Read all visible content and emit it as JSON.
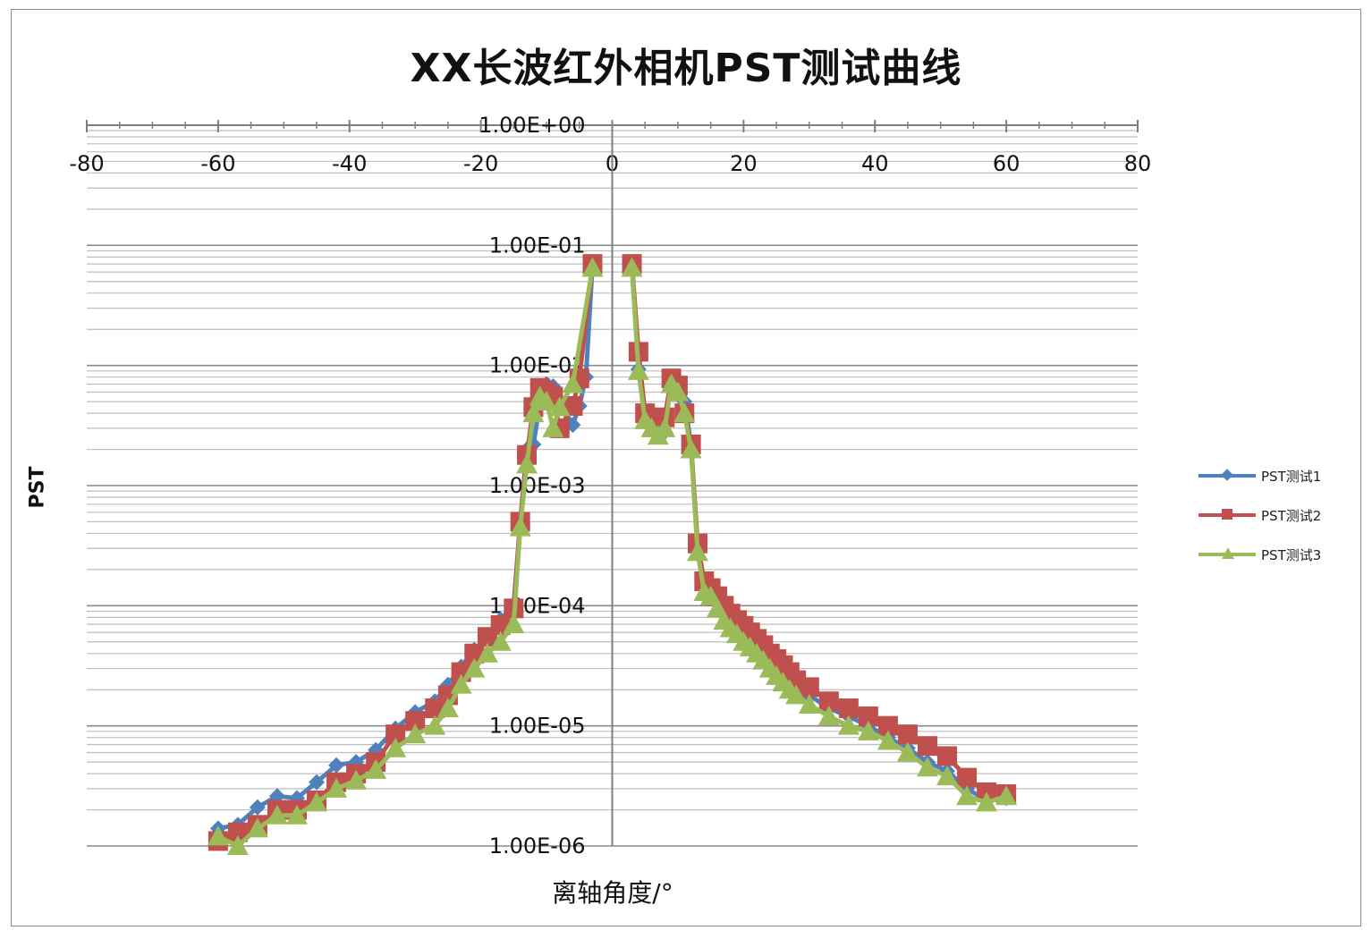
{
  "chart_data": {
    "type": "scatter",
    "title": "XX长波红外相机PST测试曲线",
    "xlabel": "离轴角度/°",
    "ylabel": "PST",
    "xlim": [
      -80,
      80
    ],
    "ylim": [
      1e-06,
      1
    ],
    "yscale": "log",
    "x_ticks": [
      "-80",
      "-60",
      "-40",
      "-20",
      "0",
      "20",
      "40",
      "60",
      "80"
    ],
    "y_ticks": [
      "1.00E+00",
      "1.00E-01",
      "1.00E-02",
      "1.00E-03",
      "1.00E-04",
      "1.00E-05",
      "1.00E-06"
    ],
    "grid": true,
    "legend_position": "right",
    "series": [
      {
        "name": "PST测试1",
        "color": "#4F81BD",
        "marker": "diamond",
        "points": [
          [
            -60,
            1.4e-06
          ],
          [
            -57,
            1.5e-06
          ],
          [
            -54,
            2.1e-06
          ],
          [
            -51,
            2.6e-06
          ],
          [
            -48,
            2.5e-06
          ],
          [
            -45,
            3.4e-06
          ],
          [
            -42,
            4.7e-06
          ],
          [
            -39,
            5e-06
          ],
          [
            -36,
            6.3e-06
          ],
          [
            -33,
            9.5e-06
          ],
          [
            -30,
            1.3e-05
          ],
          [
            -27,
            1.6e-05
          ],
          [
            -25,
            2.2e-05
          ],
          [
            -23,
            3.1e-05
          ],
          [
            -21,
            4.3e-05
          ],
          [
            -19,
            5.4e-05
          ],
          [
            -17,
            7.7e-05
          ],
          [
            -15,
            0.0001
          ],
          [
            -14,
            0.0005
          ],
          [
            -13,
            0.002
          ],
          [
            -12,
            0.0022
          ],
          [
            -11,
            0.0048
          ],
          [
            -10,
            0.007
          ],
          [
            -9,
            0.0067
          ],
          [
            -8,
            0.005
          ],
          [
            -6,
            0.0032
          ],
          [
            -5,
            0.0046
          ],
          [
            -4,
            0.008
          ],
          [
            -3,
            0.07
          ],
          [
            3,
            0.07
          ],
          [
            4,
            0.0093
          ],
          [
            5,
            0.0035
          ],
          [
            6,
            0.0032
          ],
          [
            7,
            0.0028
          ],
          [
            8,
            0.0028
          ],
          [
            9,
            0.0078
          ],
          [
            10,
            0.0076
          ],
          [
            11,
            0.005
          ],
          [
            12,
            0.0022
          ],
          [
            13,
            0.0003
          ],
          [
            14,
            0.00015
          ],
          [
            15,
            0.00014
          ],
          [
            16,
            0.00011
          ],
          [
            17,
            8.8e-05
          ],
          [
            18,
            7.8e-05
          ],
          [
            19,
            6.6e-05
          ],
          [
            20,
            5.8e-05
          ],
          [
            21,
            5.3e-05
          ],
          [
            22,
            4.8e-05
          ],
          [
            23,
            4.1e-05
          ],
          [
            24,
            3.5e-05
          ],
          [
            25,
            3e-05
          ],
          [
            26,
            2.7e-05
          ],
          [
            27,
            2.4e-05
          ],
          [
            28,
            2.1e-05
          ],
          [
            30,
            1.8e-05
          ],
          [
            33,
            1.4e-05
          ],
          [
            36,
            1.2e-05
          ],
          [
            39,
            1e-05
          ],
          [
            42,
            8e-06
          ],
          [
            45,
            6.5e-06
          ],
          [
            48,
            5e-06
          ],
          [
            51,
            4.2e-06
          ],
          [
            54,
            3e-06
          ],
          [
            57,
            2.4e-06
          ],
          [
            60,
            2.5e-06
          ]
        ]
      },
      {
        "name": "PST测试2",
        "color": "#C0504D",
        "marker": "square",
        "points": [
          [
            -60,
            1.1e-06
          ],
          [
            -57,
            1.3e-06
          ],
          [
            -54,
            1.5e-06
          ],
          [
            -51,
            2e-06
          ],
          [
            -48,
            2e-06
          ],
          [
            -45,
            2.4e-06
          ],
          [
            -42,
            3.4e-06
          ],
          [
            -39,
            4e-06
          ],
          [
            -36,
            5e-06
          ],
          [
            -33,
            8.5e-06
          ],
          [
            -30,
            1.1e-05
          ],
          [
            -27,
            1.4e-05
          ],
          [
            -25,
            1.8e-05
          ],
          [
            -23,
            2.8e-05
          ],
          [
            -21,
            4e-05
          ],
          [
            -19,
            5.5e-05
          ],
          [
            -17,
            6.9e-05
          ],
          [
            -15,
            9.5e-05
          ],
          [
            -14,
            0.0005
          ],
          [
            -13,
            0.0018
          ],
          [
            -12,
            0.0045
          ],
          [
            -11,
            0.0065
          ],
          [
            -10,
            0.006
          ],
          [
            -9,
            0.0055
          ],
          [
            -8,
            0.003
          ],
          [
            -6,
            0.0046
          ],
          [
            -5,
            0.0078
          ],
          [
            -3,
            0.07
          ],
          [
            3,
            0.07
          ],
          [
            4,
            0.013
          ],
          [
            5,
            0.004
          ],
          [
            6,
            0.0036
          ],
          [
            7,
            0.0033
          ],
          [
            8,
            0.0037
          ],
          [
            9,
            0.0078
          ],
          [
            10,
            0.0068
          ],
          [
            11,
            0.004
          ],
          [
            12,
            0.0022
          ],
          [
            13,
            0.00033
          ],
          [
            14,
            0.00016
          ],
          [
            15,
            0.00014
          ],
          [
            16,
            0.00012
          ],
          [
            17,
            0.0001
          ],
          [
            18,
            8.6e-05
          ],
          [
            19,
            7.6e-05
          ],
          [
            20,
            6.8e-05
          ],
          [
            21,
            6e-05
          ],
          [
            22,
            5.3e-05
          ],
          [
            23,
            4.7e-05
          ],
          [
            24,
            4e-05
          ],
          [
            25,
            3.6e-05
          ],
          [
            26,
            3.2e-05
          ],
          [
            27,
            2.8e-05
          ],
          [
            28,
            2.4e-05
          ],
          [
            30,
            2.1e-05
          ],
          [
            33,
            1.6e-05
          ],
          [
            36,
            1.4e-05
          ],
          [
            39,
            1.2e-05
          ],
          [
            42,
            1e-05
          ],
          [
            45,
            8.5e-06
          ],
          [
            48,
            6.8e-06
          ],
          [
            51,
            5.6e-06
          ],
          [
            54,
            3.7e-06
          ],
          [
            57,
            2.8e-06
          ],
          [
            60,
            2.7e-06
          ]
        ]
      },
      {
        "name": "PST测试3",
        "color": "#9BBB59",
        "marker": "triangle",
        "points": [
          [
            -60,
            1.2e-06
          ],
          [
            -57,
            1e-06
          ],
          [
            -54,
            1.4e-06
          ],
          [
            -51,
            1.8e-06
          ],
          [
            -48,
            1.8e-06
          ],
          [
            -45,
            2.3e-06
          ],
          [
            -42,
            3e-06
          ],
          [
            -39,
            3.5e-06
          ],
          [
            -36,
            4.3e-06
          ],
          [
            -33,
            6.5e-06
          ],
          [
            -30,
            8.5e-06
          ],
          [
            -27,
            1e-05
          ],
          [
            -25,
            1.4e-05
          ],
          [
            -23,
            2.2e-05
          ],
          [
            -21,
            3e-05
          ],
          [
            -19,
            4e-05
          ],
          [
            -17,
            5e-05
          ],
          [
            -15,
            7e-05
          ],
          [
            -14,
            0.00045
          ],
          [
            -13,
            0.0015
          ],
          [
            -12,
            0.004
          ],
          [
            -11,
            0.0055
          ],
          [
            -10,
            0.005
          ],
          [
            -9,
            0.003
          ],
          [
            -8,
            0.0045
          ],
          [
            -6,
            0.007
          ],
          [
            -3,
            0.065
          ],
          [
            3,
            0.065
          ],
          [
            4,
            0.009
          ],
          [
            5,
            0.0035
          ],
          [
            6,
            0.003
          ],
          [
            7,
            0.0026
          ],
          [
            8,
            0.003
          ],
          [
            9,
            0.007
          ],
          [
            10,
            0.006
          ],
          [
            11,
            0.004
          ],
          [
            12,
            0.002
          ],
          [
            13,
            0.00028
          ],
          [
            14,
            0.00013
          ],
          [
            15,
            0.00012
          ],
          [
            16,
            9.5e-05
          ],
          [
            17,
            7.5e-05
          ],
          [
            18,
            6.5e-05
          ],
          [
            19,
            5.8e-05
          ],
          [
            20,
            5e-05
          ],
          [
            21,
            4.5e-05
          ],
          [
            22,
            4e-05
          ],
          [
            23,
            3.5e-05
          ],
          [
            24,
            3e-05
          ],
          [
            25,
            2.6e-05
          ],
          [
            26,
            2.3e-05
          ],
          [
            27,
            2e-05
          ],
          [
            28,
            1.8e-05
          ],
          [
            30,
            1.5e-05
          ],
          [
            33,
            1.2e-05
          ],
          [
            36,
            1e-05
          ],
          [
            39,
            9e-06
          ],
          [
            42,
            7.5e-06
          ],
          [
            45,
            6e-06
          ],
          [
            48,
            4.5e-06
          ],
          [
            51,
            3.8e-06
          ],
          [
            54,
            2.6e-06
          ],
          [
            57,
            2.3e-06
          ],
          [
            60,
            2.6e-06
          ]
        ]
      }
    ]
  }
}
